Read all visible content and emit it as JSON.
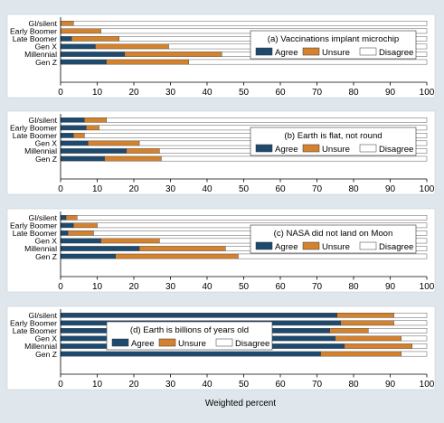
{
  "chart_data": {
    "type": "bar",
    "stacked": true,
    "orientation": "horizontal",
    "xlabel": "Weighted percent",
    "xlim": [
      0,
      100
    ],
    "xticks": [
      0,
      10,
      20,
      30,
      40,
      50,
      60,
      70,
      80,
      90,
      100
    ],
    "categories": [
      "GI/silent",
      "Early Boomer",
      "Late Boomer",
      "Gen X",
      "Millennial",
      "Gen Z"
    ],
    "legend_labels": [
      "Agree",
      "Unsure",
      "Disagree"
    ],
    "colors": {
      "agree": "#1d4a6e",
      "unsure": "#d4822e",
      "disagree": "#ffffff",
      "panel": "#ffffff",
      "background": "#dfe7ec",
      "outline": "#333333"
    },
    "grid": false,
    "panels": [
      {
        "title": "(a)  Vaccinations implant microchip",
        "legend_position": "right",
        "agree": [
          0,
          0,
          3,
          9.5,
          17.5,
          12.5
        ],
        "unsure": [
          3.5,
          11,
          13,
          20,
          26.5,
          22.5
        ]
      },
      {
        "title": "(b)  Earth is flat, not round",
        "legend_position": "right",
        "agree": [
          6.5,
          7,
          3.5,
          7.5,
          18,
          12
        ],
        "unsure": [
          6,
          3.5,
          3,
          14,
          9,
          15.5
        ]
      },
      {
        "title": "(c)  NASA did not land on Moon",
        "legend_position": "right",
        "agree": [
          1.5,
          3.5,
          2,
          11,
          21.5,
          15
        ],
        "unsure": [
          3,
          6.5,
          7,
          16,
          23.5,
          33.5
        ]
      },
      {
        "title": "(d)  Earth is billions of years old",
        "legend_position": "center",
        "agree": [
          75.5,
          76.5,
          73.5,
          75,
          77.5,
          71
        ],
        "unsure": [
          15.5,
          14.5,
          10.5,
          18,
          18.5,
          22
        ]
      }
    ]
  }
}
